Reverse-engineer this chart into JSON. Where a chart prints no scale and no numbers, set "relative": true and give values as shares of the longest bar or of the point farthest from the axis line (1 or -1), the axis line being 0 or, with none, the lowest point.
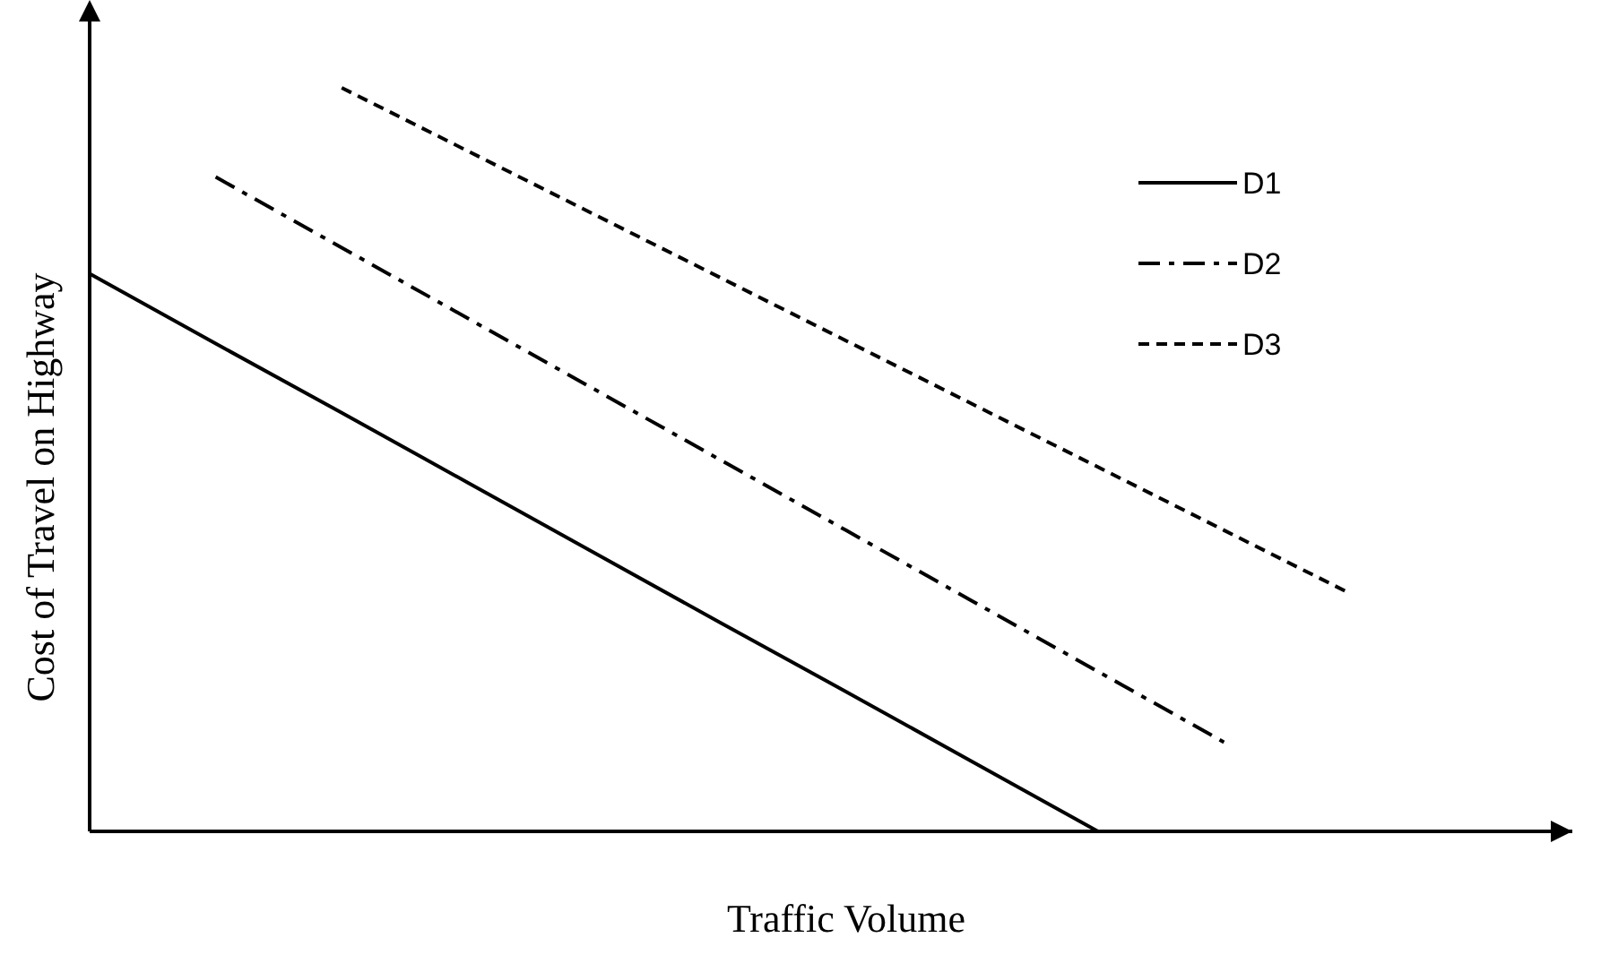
{
  "chart_data": {
    "type": "line",
    "relative": true,
    "xlabel": "Traffic Volume",
    "ylabel": "Cost of Travel on Highway",
    "categories": [
      null,
      null,
      null,
      null,
      null,
      null,
      null,
      null,
      null,
      null,
      null,
      null
    ],
    "series": [
      {
        "name": "D1",
        "color": "#000000",
        "line_style": "solid",
        "values": [
          0.75,
          0.656,
          0.563,
          0.469,
          0.375,
          0.281,
          0.188,
          0.094,
          0,
          null,
          null,
          null
        ]
      },
      {
        "name": "D2",
        "color": "#000000",
        "line_style": "dashdot",
        "values": [
          null,
          0.88,
          0.785,
          0.69,
          0.595,
          0.5,
          0.405,
          0.31,
          0.215,
          0.12,
          null,
          null
        ]
      },
      {
        "name": "D3",
        "color": "#000000",
        "line_style": "dashed",
        "values": [
          null,
          null,
          1,
          0.915,
          0.83,
          0.745,
          0.66,
          0.575,
          0.49,
          0.405,
          0.32,
          null
        ]
      }
    ],
    "legend": "top right",
    "marker": "none"
  }
}
